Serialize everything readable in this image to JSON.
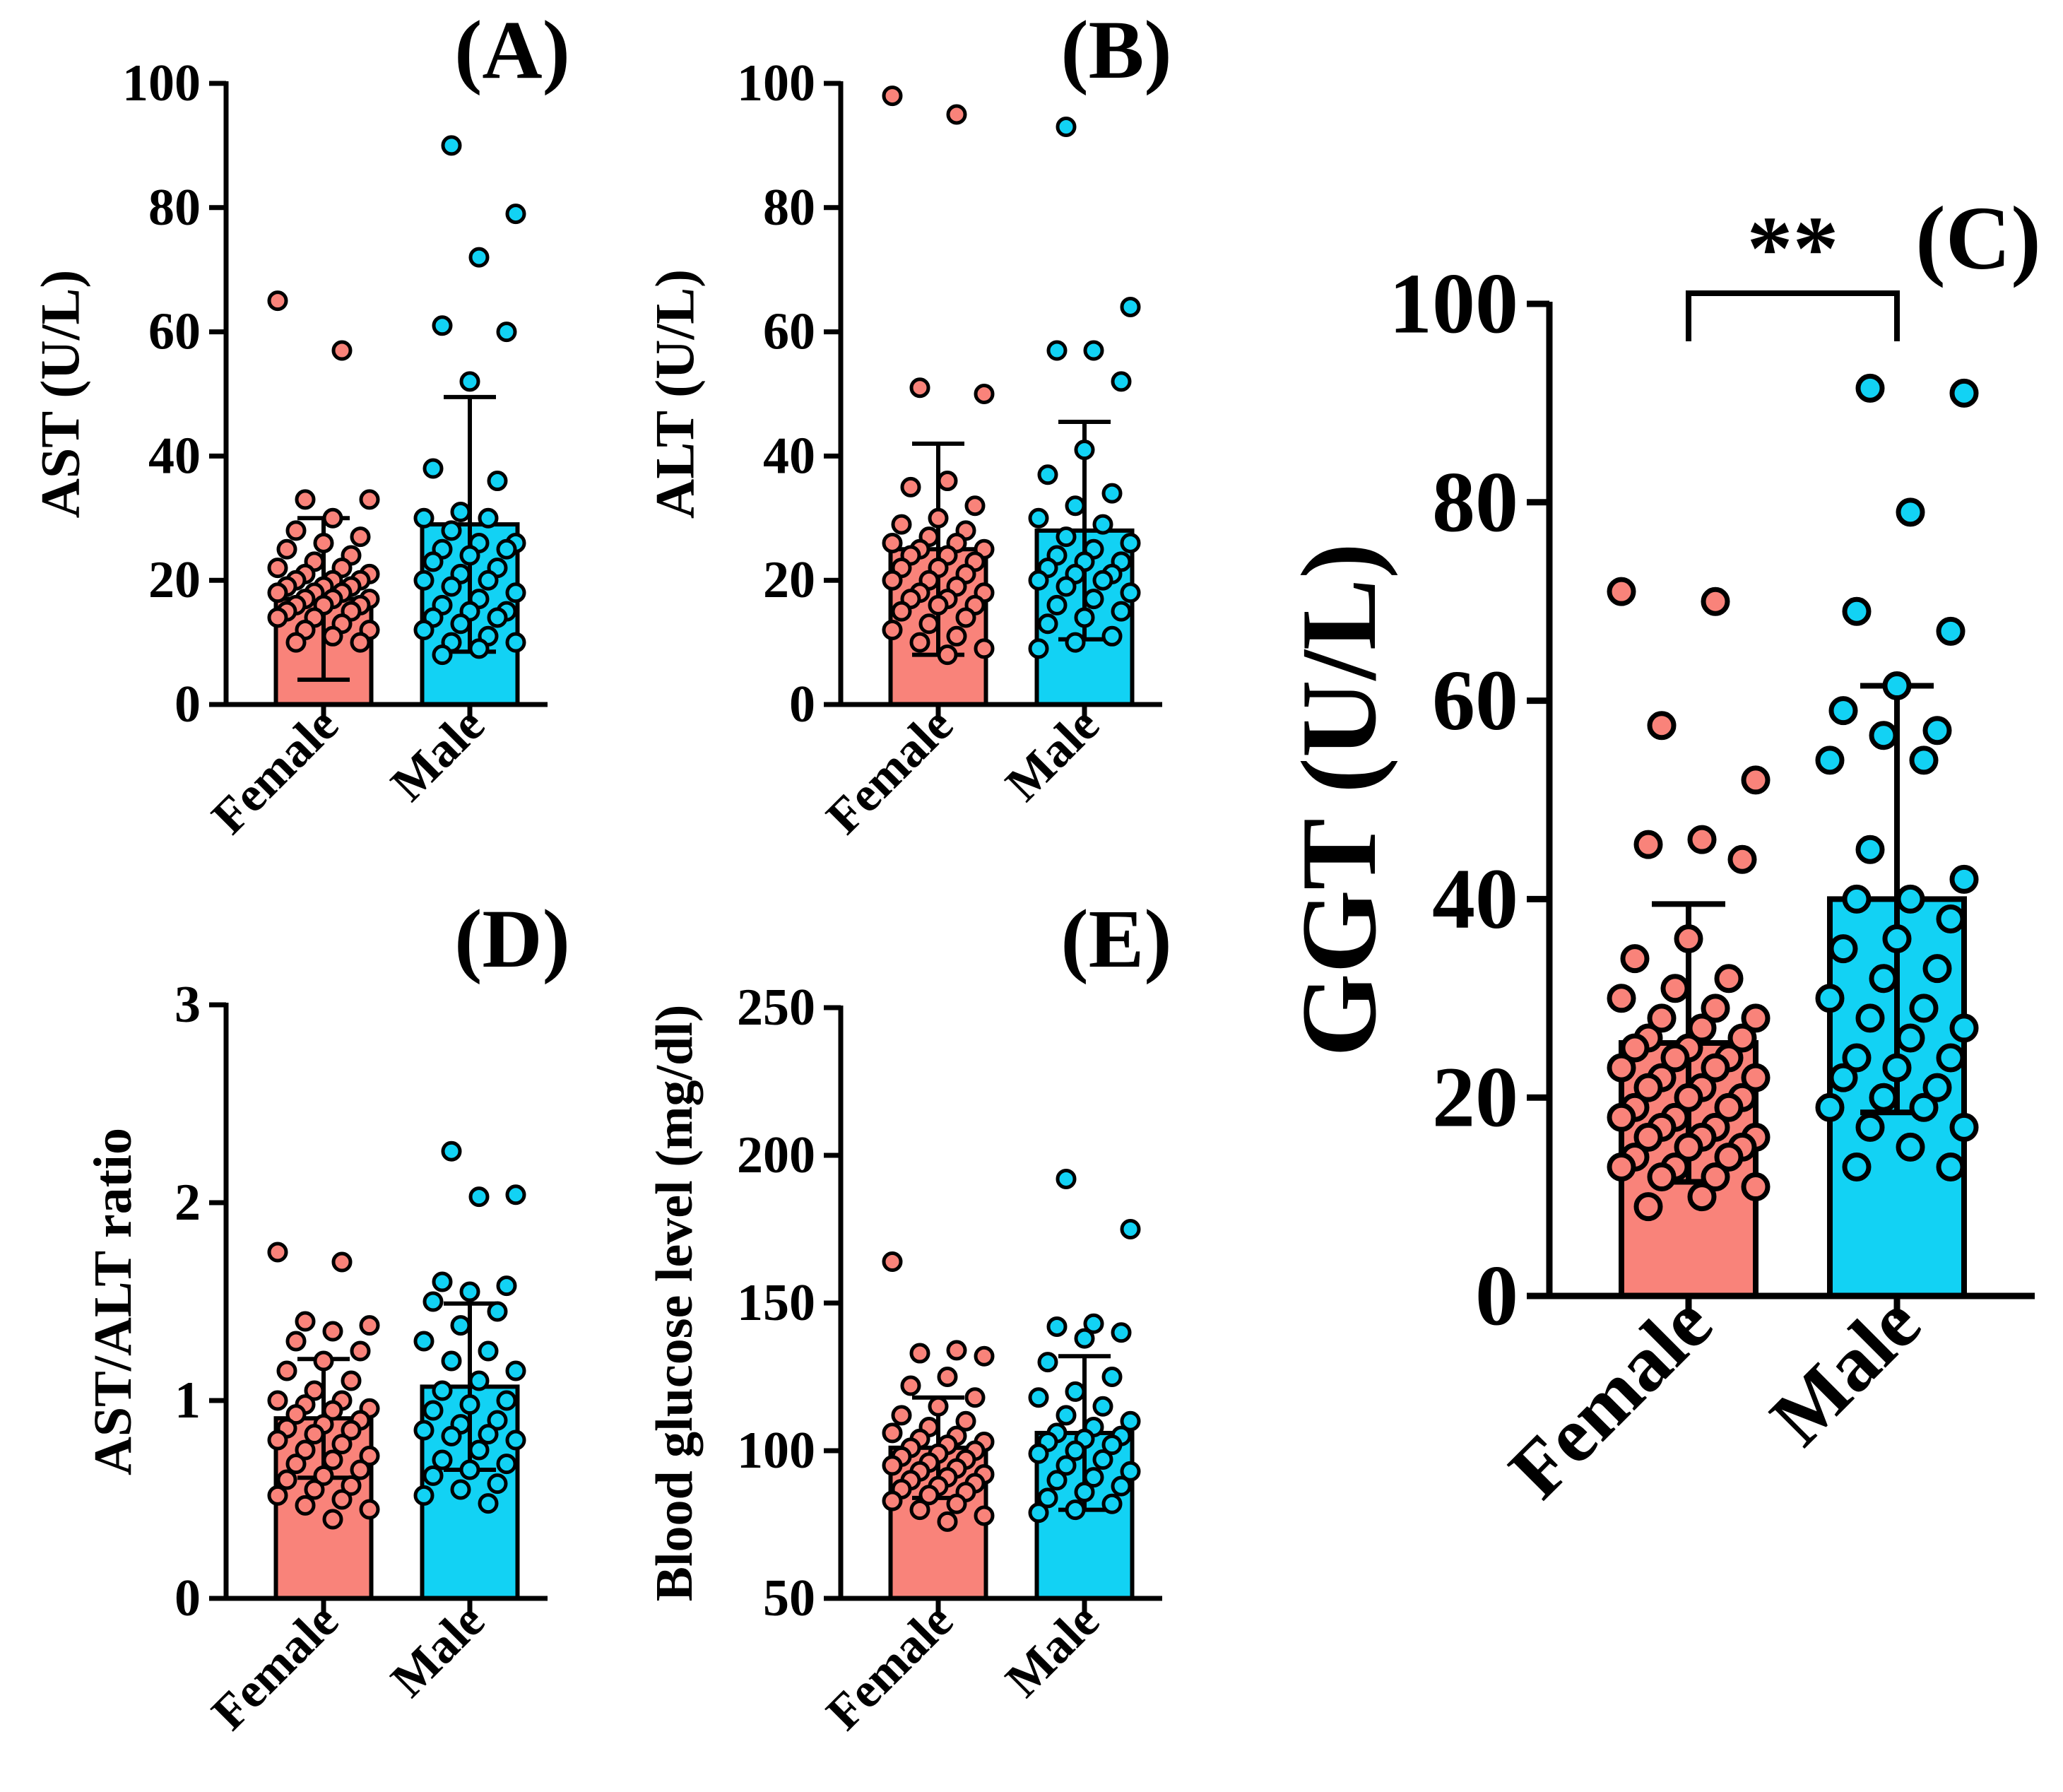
{
  "colors": {
    "female": "#f9837a",
    "male": "#12d2f4",
    "stroke": "#000000"
  },
  "chart_data": [
    {
      "id": "A",
      "type": "bar",
      "panel_label": "(A)",
      "ylabel": "AST (U/L)",
      "ylim": [
        0,
        100
      ],
      "yticks": [
        "0",
        "20",
        "40",
        "60",
        "80",
        "100"
      ],
      "categories": [
        "Female",
        "Male"
      ],
      "series": [
        {
          "name": "Female",
          "mean": 17,
          "sd": 13,
          "points": [
            65,
            57,
            33,
            33,
            30,
            28,
            27,
            26,
            25,
            24,
            23,
            22,
            22,
            21,
            21,
            20,
            20,
            20,
            19,
            19,
            19,
            18,
            18,
            18,
            17,
            17,
            17,
            16,
            16,
            16,
            15,
            15,
            14,
            14,
            13,
            12,
            12,
            11,
            10,
            10
          ]
        },
        {
          "name": "Male",
          "mean": 29,
          "sd": 20.5,
          "points": [
            90,
            79,
            72,
            61,
            60,
            52,
            38,
            36,
            31,
            30,
            30,
            28,
            26,
            26,
            25,
            25,
            24,
            23,
            22,
            21,
            20,
            20,
            19,
            18,
            17,
            16,
            15,
            15,
            14,
            14,
            13,
            12,
            11,
            10,
            10,
            9,
            8
          ]
        }
      ]
    },
    {
      "id": "B",
      "type": "bar",
      "panel_label": "(B)",
      "ylabel": "ALT (U/L)",
      "ylim": [
        0,
        100
      ],
      "yticks": [
        "0",
        "20",
        "40",
        "60",
        "80",
        "100"
      ],
      "categories": [
        "Female",
        "Male"
      ],
      "series": [
        {
          "name": "Female",
          "mean": 25,
          "sd": 17,
          "points": [
            98,
            95,
            51,
            50,
            36,
            35,
            32,
            30,
            29,
            28,
            27,
            26,
            26,
            25,
            25,
            24,
            24,
            23,
            22,
            22,
            21,
            20,
            20,
            19,
            18,
            18,
            17,
            17,
            16,
            16,
            15,
            14,
            13,
            12,
            11,
            10,
            9,
            8
          ]
        },
        {
          "name": "Male",
          "mean": 28,
          "sd": 17.5,
          "points": [
            93,
            64,
            57,
            57,
            52,
            41,
            37,
            34,
            32,
            30,
            29,
            27,
            26,
            25,
            24,
            23,
            23,
            22,
            21,
            21,
            20,
            20,
            19,
            18,
            17,
            16,
            15,
            14,
            13,
            11,
            10,
            9
          ]
        }
      ]
    },
    {
      "id": "C",
      "type": "bar",
      "panel_label": "(C)",
      "ylabel": "GGT (U/L)",
      "ylim": [
        0,
        100
      ],
      "yticks": [
        "0",
        "20",
        "40",
        "60",
        "80",
        "100"
      ],
      "categories": [
        "Female",
        "Male"
      ],
      "significance": "**",
      "series": [
        {
          "name": "Female",
          "mean": 25.5,
          "sd": 14,
          "points": [
            71,
            70,
            57.5,
            52,
            46,
            45.5,
            44,
            36,
            34,
            32,
            31,
            30,
            29,
            28,
            28,
            27,
            26,
            26,
            25,
            25,
            24,
            24,
            23,
            23,
            22,
            22,
            21,
            21,
            20,
            20,
            19,
            19,
            18,
            18,
            17,
            17,
            16,
            16,
            16,
            15,
            15,
            14,
            14,
            13,
            13,
            12,
            12,
            11,
            10,
            9
          ]
        },
        {
          "name": "Male",
          "mean": 40,
          "sd": 21.5,
          "points": [
            91.5,
            91,
            79,
            69,
            67,
            61.5,
            59,
            57,
            56.5,
            54,
            54,
            45,
            42,
            40,
            40,
            38,
            36,
            35,
            33,
            32,
            30,
            29,
            28,
            27,
            26,
            24,
            24,
            23,
            22,
            21,
            20,
            19,
            19,
            17,
            17,
            15,
            13,
            13
          ]
        }
      ]
    },
    {
      "id": "D",
      "type": "bar",
      "panel_label": "(D)",
      "ylabel": "AST/ALT ratio",
      "ylim": [
        0,
        3
      ],
      "yticks": [
        "0",
        "1",
        "2",
        "3"
      ],
      "categories": [
        "Female",
        "Male"
      ],
      "series": [
        {
          "name": "Female",
          "mean": 0.91,
          "sd": 0.3,
          "points": [
            1.75,
            1.7,
            1.4,
            1.38,
            1.35,
            1.3,
            1.25,
            1.2,
            1.15,
            1.1,
            1.05,
            1.0,
            1.0,
            0.98,
            0.96,
            0.95,
            0.93,
            0.9,
            0.88,
            0.86,
            0.85,
            0.83,
            0.8,
            0.78,
            0.75,
            0.72,
            0.7,
            0.68,
            0.65,
            0.62,
            0.6,
            0.57,
            0.55,
            0.52,
            0.5,
            0.47,
            0.45,
            0.4
          ]
        },
        {
          "name": "Male",
          "mean": 1.07,
          "sd": 0.42,
          "points": [
            2.26,
            2.04,
            2.03,
            1.6,
            1.58,
            1.55,
            1.5,
            1.45,
            1.38,
            1.3,
            1.25,
            1.2,
            1.15,
            1.1,
            1.05,
            1.0,
            0.98,
            0.95,
            0.9,
            0.88,
            0.85,
            0.83,
            0.82,
            0.8,
            0.75,
            0.7,
            0.68,
            0.65,
            0.62,
            0.58,
            0.55,
            0.52,
            0.48
          ]
        }
      ]
    },
    {
      "id": "E",
      "type": "bar",
      "panel_label": "(E)",
      "ylabel": "Blood glucose level (mg/dl)",
      "ylim": [
        50,
        250
      ],
      "yticks": [
        "50",
        "100",
        "150",
        "200",
        "250"
      ],
      "categories": [
        "Female",
        "Male"
      ],
      "series": [
        {
          "name": "Female",
          "mean": 101,
          "sd": 17,
          "points": [
            164,
            134,
            133,
            132,
            125,
            122,
            118,
            115,
            112,
            110,
            108,
            106,
            105,
            104,
            103,
            102,
            101,
            100,
            99,
            98,
            97,
            96,
            95,
            94,
            93,
            92,
            91,
            90,
            89,
            88,
            87,
            86,
            85,
            83,
            82,
            80,
            78,
            76
          ]
        },
        {
          "name": "Male",
          "mean": 106,
          "sd": 26,
          "points": [
            192,
            175,
            143,
            142,
            140,
            138,
            130,
            125,
            120,
            118,
            115,
            112,
            110,
            108,
            106,
            105,
            104,
            103,
            102,
            100,
            99,
            97,
            95,
            93,
            91,
            90,
            88,
            86,
            84,
            82,
            80,
            79
          ]
        }
      ]
    }
  ]
}
